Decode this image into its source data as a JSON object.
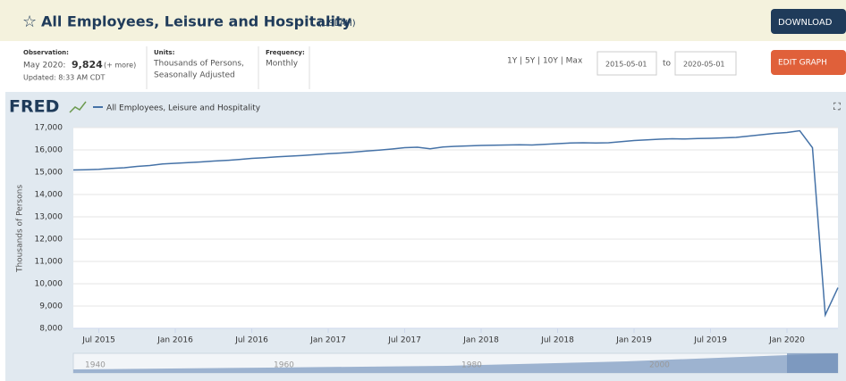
{
  "header": {
    "title": "All Employees, Leisure and Hospitality",
    "series_id": "(USLAH)",
    "download": "DOWNLOAD"
  },
  "info": {
    "observation_label": "Observation:",
    "observation_date": "May 2020:",
    "observation_value": "9,824",
    "more": "(+ more)",
    "updated": "Updated: 8:33 AM CDT",
    "units_label": "Units:",
    "units_line1": "Thousands of Persons,",
    "units_line2": "Seasonally Adjusted",
    "frequency_label": "Frequency:",
    "frequency": "Monthly",
    "ranges": "1Y | 5Y | 10Y | Max",
    "start_date": "2015-05-01",
    "to": "to",
    "end_date": "2020-05-01",
    "edit": "EDIT GRAPH"
  },
  "brand": "FRED",
  "navigator": {
    "labels": [
      "1940",
      "1960",
      "1980",
      "2000"
    ]
  },
  "chart_data": {
    "type": "line",
    "y_label": "Thousands of Persons",
    "categories": [
      null,
      null,
      "Jul 2015",
      null,
      null,
      null,
      null,
      null,
      "Jan 2016",
      null,
      null,
      null,
      null,
      null,
      "Jul 2016",
      null,
      null,
      null,
      null,
      null,
      "Jan 2017",
      null,
      null,
      null,
      null,
      null,
      "Jul 2017",
      null,
      null,
      null,
      null,
      null,
      "Jan 2018",
      null,
      null,
      null,
      null,
      null,
      "Jul 2018",
      null,
      null,
      null,
      null,
      null,
      "Jan 2019",
      null,
      null,
      null,
      null,
      null,
      "Jul 2019",
      null,
      null,
      null,
      null,
      null,
      "Jan 2020",
      null,
      null,
      null,
      null
    ],
    "series": [
      {
        "name": "All Employees, Leisure and Hospitality",
        "color": "#4572a7",
        "values": [
          15100,
          15110,
          15130,
          15170,
          15200,
          15260,
          15300,
          15370,
          15400,
          15430,
          15460,
          15500,
          15530,
          15570,
          15620,
          15650,
          15690,
          15720,
          15750,
          15790,
          15830,
          15860,
          15900,
          15950,
          15990,
          16040,
          16100,
          16120,
          16050,
          16130,
          16160,
          16180,
          16200,
          16210,
          16220,
          16230,
          16220,
          16250,
          16280,
          16310,
          16320,
          16310,
          16320,
          16370,
          16420,
          16450,
          16480,
          16500,
          16490,
          16510,
          16520,
          16540,
          16560,
          16620,
          16680,
          16740,
          16780,
          16860,
          16100,
          8600,
          9824
        ]
      }
    ],
    "ylim": [
      8000,
      17000
    ],
    "yticks": [
      {
        "value": 8000,
        "label": "8,000"
      },
      {
        "value": 9000,
        "label": "9,000"
      },
      {
        "value": 10000,
        "label": "10,000"
      },
      {
        "value": 11000,
        "label": "11,000"
      },
      {
        "value": 12000,
        "label": "12,000"
      },
      {
        "value": 13000,
        "label": "13,000"
      },
      {
        "value": 14000,
        "label": "14,000"
      },
      {
        "value": 15000,
        "label": "15,000"
      },
      {
        "value": 16000,
        "label": "16,000"
      },
      {
        "value": 17000,
        "label": "17,000"
      }
    ],
    "grid": true
  }
}
